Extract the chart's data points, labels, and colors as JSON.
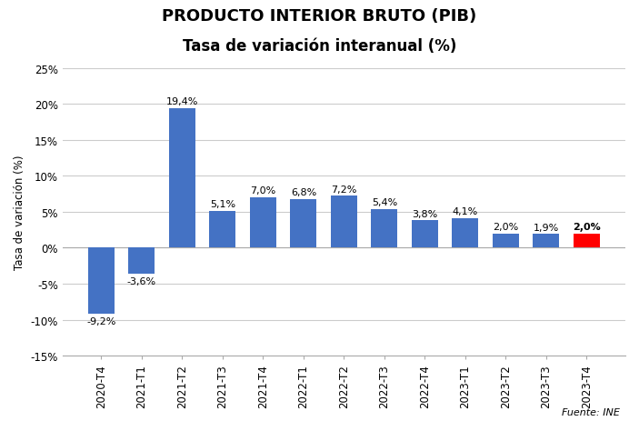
{
  "title_line1": "PRODUCTO INTERIOR BRUTO (PIB)",
  "title_line2": "Tasa de variación interanual (%)",
  "categories": [
    "2020-T4",
    "2021-T1",
    "2021-T2",
    "2021-T3",
    "2021-T4",
    "2022-T1",
    "2022-T2",
    "2022-T3",
    "2022-T4",
    "2023-T1",
    "2023-T2",
    "2023-T3",
    "2023-T4"
  ],
  "values": [
    -9.2,
    -3.6,
    19.4,
    5.1,
    7.0,
    6.8,
    7.2,
    5.4,
    3.8,
    4.1,
    2.0,
    1.9,
    2.0
  ],
  "bar_colors": [
    "#4472C4",
    "#4472C4",
    "#4472C4",
    "#4472C4",
    "#4472C4",
    "#4472C4",
    "#4472C4",
    "#4472C4",
    "#4472C4",
    "#4472C4",
    "#4472C4",
    "#4472C4",
    "#FF0000"
  ],
  "ylabel": "Tasa de variación (%)",
  "ylim": [
    -15,
    25
  ],
  "yticks": [
    -15,
    -10,
    -5,
    0,
    5,
    10,
    15,
    20,
    25
  ],
  "ytick_labels": [
    "-15%",
    "-10%",
    "-5%",
    "0%",
    "5%",
    "10%",
    "15%",
    "20%",
    "25%"
  ],
  "source": "Fuente: INE",
  "background_color": "#FFFFFF",
  "grid_color": "#CCCCCC",
  "title_fontsize": 13,
  "subtitle_fontsize": 12,
  "label_fontsize": 8,
  "axis_fontsize": 8.5,
  "ylabel_fontsize": 8.5
}
